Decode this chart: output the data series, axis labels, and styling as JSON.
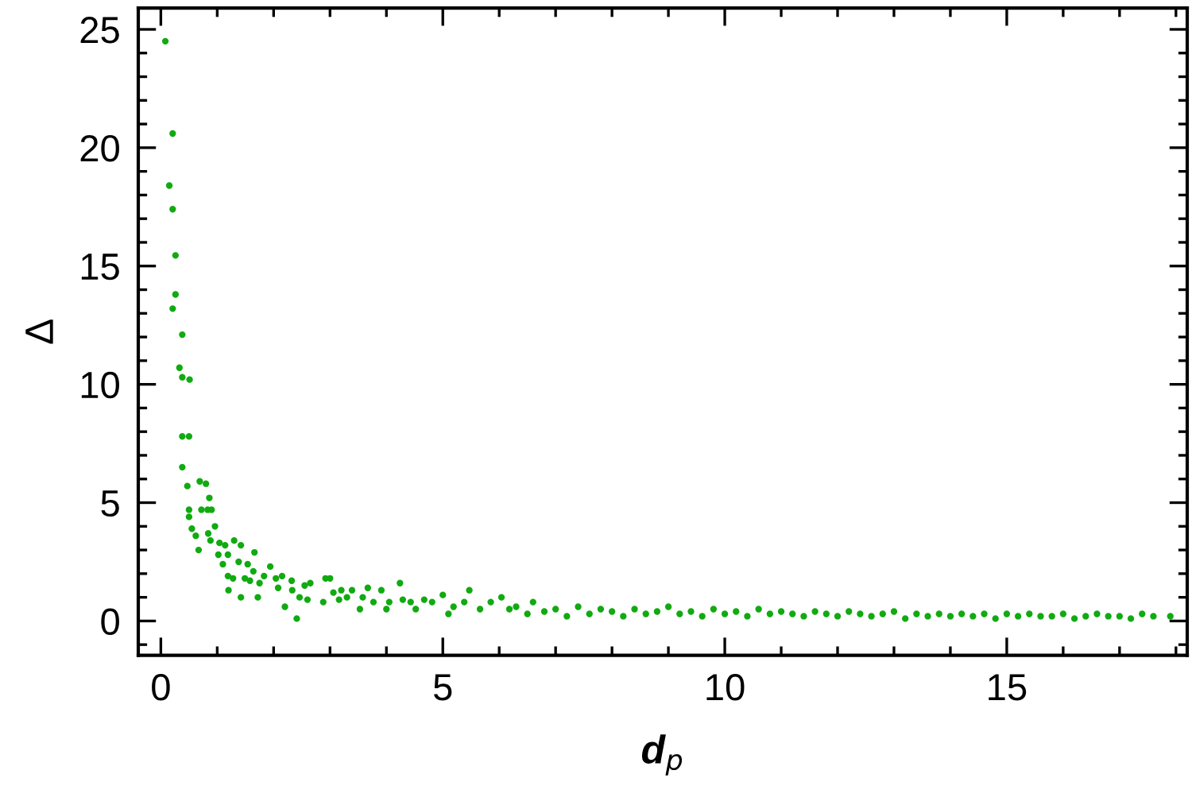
{
  "chart_data": {
    "type": "scatter",
    "xlabel": "d$_{p}$",
    "ylabel": "Δ",
    "xlim": [
      -0.4,
      18.2
    ],
    "ylim": [
      -1.45,
      25.9
    ],
    "xticks": [
      0,
      {
        "value": 1,
        "label": null
      },
      {
        "value": 2,
        "label": null
      },
      {
        "value": 3,
        "label": null
      },
      {
        "value": 4,
        "label": null
      },
      5,
      {
        "value": 6,
        "label": null
      },
      {
        "value": 7,
        "label": null
      },
      {
        "value": 8,
        "label": null
      },
      {
        "value": 9,
        "label": null
      },
      10,
      {
        "value": 11,
        "label": null
      },
      {
        "value": 12,
        "label": null
      },
      {
        "value": 13,
        "label": null
      },
      {
        "value": 14,
        "label": null
      },
      15,
      {
        "value": 16,
        "label": null
      },
      {
        "value": 17,
        "label": null
      },
      {
        "value": 18,
        "label": null
      }
    ],
    "yticks": [
      {
        "value": -1,
        "label": null
      },
      0,
      {
        "value": 1,
        "label": null
      },
      {
        "value": 2,
        "label": null
      },
      {
        "value": 3,
        "label": null
      },
      {
        "value": 4,
        "label": null
      },
      5,
      {
        "value": 6,
        "label": null
      },
      {
        "value": 7,
        "label": null
      },
      {
        "value": 8,
        "label": null
      },
      {
        "value": 9,
        "label": null
      },
      10,
      {
        "value": 11,
        "label": null
      },
      {
        "value": 12,
        "label": null
      },
      {
        "value": 13,
        "label": null
      },
      {
        "value": 14,
        "label": null
      },
      15,
      {
        "value": 16,
        "label": null
      },
      {
        "value": 17,
        "label": null
      },
      {
        "value": 18,
        "label": null
      },
      {
        "value": 19,
        "label": null
      },
      20,
      {
        "value": 21,
        "label": null
      },
      {
        "value": 22,
        "label": null
      },
      {
        "value": 23,
        "label": null
      },
      {
        "value": 24,
        "label": null
      },
      25
    ],
    "grid": false,
    "legend": false,
    "marker": "circle",
    "series": [
      {
        "color": "#11aa11",
        "x": [
          0.08,
          0.21,
          0.15,
          0.21,
          0.26,
          0.26,
          0.21,
          0.38,
          0.33,
          0.38,
          0.51,
          0.38,
          0.5,
          0.38,
          0.47,
          0.5,
          0.5,
          0.69,
          0.8,
          0.72,
          0.83,
          0.86,
          0.9,
          0.55,
          0.62,
          0.67,
          0.84,
          0.88,
          0.96,
          1.04,
          1.02,
          1.14,
          1.19,
          1.1,
          1.3,
          1.42,
          1.19,
          1.28,
          1.2,
          1.42,
          1.38,
          1.54,
          1.49,
          1.64,
          1.66,
          1.58,
          1.72,
          1.75,
          1.94,
          1.83,
          2.04,
          2.08,
          2.15,
          2.2,
          2.32,
          2.41,
          2.33,
          2.46,
          2.55,
          2.65,
          2.6,
          2.92,
          3.0,
          2.88,
          3.06,
          3.16,
          3.2,
          3.3,
          3.39,
          3.53,
          3.58,
          3.67,
          3.77,
          3.91,
          4.0,
          4.05,
          4.24,
          4.29,
          4.43,
          4.52,
          4.67,
          4.81,
          5.0,
          5.1,
          5.19,
          5.38,
          5.47,
          5.66,
          5.85,
          6.04,
          6.18,
          6.3,
          6.5,
          6.6,
          6.8,
          7.0,
          7.2,
          7.4,
          7.6,
          7.8,
          8.0,
          8.2,
          8.4,
          8.6,
          8.8,
          9.0,
          9.2,
          9.4,
          9.6,
          9.8,
          10.0,
          10.2,
          10.4,
          10.6,
          10.8,
          11.0,
          11.2,
          11.4,
          11.6,
          11.8,
          12.0,
          12.2,
          12.4,
          12.6,
          12.8,
          13.0,
          13.2,
          13.4,
          13.6,
          13.8,
          14.0,
          14.2,
          14.4,
          14.6,
          14.8,
          15.0,
          15.2,
          15.4,
          15.6,
          15.8,
          16.0,
          16.2,
          16.4,
          16.6,
          16.8,
          17.0,
          17.2,
          17.4,
          17.6,
          17.9
        ],
        "values": [
          24.5,
          20.6,
          18.4,
          17.4,
          15.45,
          13.8,
          13.2,
          12.1,
          10.7,
          10.3,
          10.2,
          7.8,
          7.8,
          6.5,
          5.7,
          4.7,
          4.4,
          5.9,
          5.8,
          4.7,
          4.7,
          5.2,
          4.7,
          3.9,
          3.6,
          3.0,
          3.7,
          3.4,
          4.0,
          3.3,
          2.8,
          3.2,
          2.8,
          2.4,
          3.4,
          3.2,
          1.9,
          1.8,
          1.3,
          1.0,
          2.5,
          2.4,
          1.8,
          2.1,
          2.9,
          1.7,
          1.0,
          1.6,
          2.3,
          1.9,
          1.8,
          1.4,
          1.9,
          0.6,
          1.7,
          0.1,
          1.3,
          1.0,
          1.5,
          1.6,
          0.9,
          1.8,
          1.8,
          0.8,
          1.2,
          0.9,
          1.3,
          1.0,
          1.3,
          0.5,
          1.0,
          1.4,
          0.8,
          1.3,
          0.5,
          0.8,
          1.6,
          0.9,
          0.8,
          0.5,
          0.9,
          0.8,
          1.1,
          0.3,
          0.6,
          0.8,
          1.3,
          0.5,
          0.8,
          1.0,
          0.5,
          0.6,
          0.3,
          0.8,
          0.4,
          0.5,
          0.2,
          0.6,
          0.3,
          0.5,
          0.4,
          0.2,
          0.5,
          0.3,
          0.4,
          0.6,
          0.3,
          0.4,
          0.2,
          0.5,
          0.3,
          0.4,
          0.2,
          0.5,
          0.3,
          0.4,
          0.3,
          0.2,
          0.4,
          0.3,
          0.2,
          0.4,
          0.3,
          0.2,
          0.3,
          0.4,
          0.1,
          0.3,
          0.2,
          0.3,
          0.2,
          0.3,
          0.2,
          0.3,
          0.1,
          0.3,
          0.2,
          0.3,
          0.2,
          0.2,
          0.3,
          0.1,
          0.2,
          0.3,
          0.2,
          0.2,
          0.1,
          0.3,
          0.2,
          0.2
        ]
      }
    ]
  }
}
